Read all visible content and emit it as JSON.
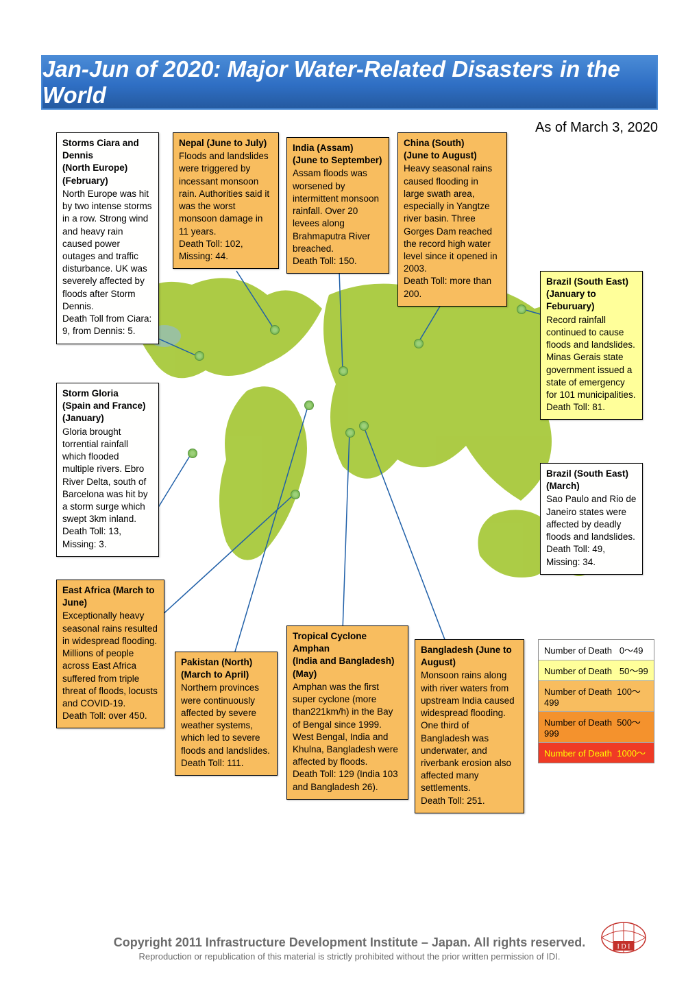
{
  "banner_title": "Jan-Jun of 2020: Major Water-Related Disasters in the World",
  "as_of": "As of March 3, 2020",
  "colors": {
    "bg_white": "#fffffe",
    "bg_pale_yellow": "#ffff9a",
    "bg_orange": "#f8bd5f",
    "bg_dark_orange": "#f4922d",
    "bg_red": "#ef3a25",
    "banner_blue": "#2f6fc4",
    "map_green": "#a8c93c"
  },
  "cards": {
    "ciara": {
      "bg": "#fffffe",
      "title": "Storms Ciara and Dennis",
      "loc": "(North Europe)",
      "dates": "(February)",
      "body": "North Europe was hit by two intense storms in a row. Strong wind and heavy rain caused power outages and traffic disturbance. UK was severely affected by floods after Storm Dennis.\nDeath Toll from Ciara: 9, from Dennis: 5."
    },
    "nepal": {
      "bg": "#f8bd5f",
      "title": "Nepal (June to July)",
      "body": "Floods and landslides were triggered by incessant monsoon rain. Authorities said it was the worst monsoon damage in 11 years.\nDeath Toll: 102, Missing: 44."
    },
    "india": {
      "bg": "#f8bd5f",
      "title": "India (Assam)",
      "dates": "(June to September)",
      "body": "Assam floods was worsened by intermittent monsoon rainfall. Over 20 levees along Brahmaputra River breached.\nDeath Toll: 150."
    },
    "china": {
      "bg": "#f8bd5f",
      "title": "China (South)",
      "dates": "(June to August)",
      "body": "Heavy seasonal rains caused flooding in large swath area, especially in Yangtze river basin. Three Gorges Dam reached the record high water level since it opened in 2003.\nDeath Toll: more than 200."
    },
    "brazil1": {
      "bg": "#ffff9a",
      "title": "Brazil (South East)",
      "dates": "(January to Feburuary)",
      "body": "Record rainfall continued to cause floods and landslides. Minas Gerais state government issued a state of emergency for 101 municipalities.\nDeath Toll: 81."
    },
    "gloria": {
      "bg": "#fffffe",
      "title": "Storm Gloria",
      "loc": "(Spain and France)",
      "dates": "(January)",
      "body": "Gloria brought torrential rainfall which flooded multiple rivers.  Ebro River Delta, south of Barcelona was hit by a storm surge which swept 3km inland.\nDeath Toll: 13, Missing: 3."
    },
    "brazil2": {
      "bg": "#fffffe",
      "title": "Brazil (South East)",
      "dates": "(March)",
      "body": "Sao Paulo and Rio de Janeiro states were affected by deadly floods and landslides.\nDeath Toll: 49,\nMissing: 34."
    },
    "eastafrica": {
      "bg": "#f8bd5f",
      "title": "East Africa (March to June)",
      "body": "Exceptionally heavy seasonal rains resulted in widespread flooding. Millions of people across East Africa suffered from triple threat of floods, locusts and COVID-19.\nDeath Toll: over 450."
    },
    "pakistan": {
      "bg": "#f8bd5f",
      "title": "Pakistan (North)",
      "dates": "(March to April)",
      "body": "Northern provinces were continuously affected by severe weather systems, which led to severe floods and landslides.\nDeath Toll: 111."
    },
    "amphan": {
      "bg": "#f8bd5f",
      "title": "Tropical Cyclone Amphan",
      "dates": "(India and Bangladesh) (May)",
      "body": "Amphan was the first super cyclone (more than221km/h) in the Bay of Bengal since 1999. West Bengal, India and Khulna, Bangladesh were affected by floods.\nDeath Toll: 129 (India 103 and Bangladesh 26)."
    },
    "bangladesh": {
      "bg": "#f8bd5f",
      "title": "Bangladesh (June to August)",
      "body": "Monsoon rains along with river waters from upstream India caused widespread flooding. One third of Bangladesh was underwater, and riverbank erosion also affected many settlements.\nDeath Toll: 251."
    }
  },
  "legend": {
    "rows": [
      {
        "label": "Number of Death",
        "range": "0～49",
        "bg": "#fffffe",
        "fg": "#000000"
      },
      {
        "label": "Number of Death",
        "range": "50～99",
        "bg": "#ffff9a",
        "fg": "#000000"
      },
      {
        "label": "Number of Death",
        "range": "100～499",
        "bg": "#f8bd5f",
        "fg": "#000000"
      },
      {
        "label": "Number of Death",
        "range": "500～999",
        "bg": "#f4922d",
        "fg": "#000000"
      },
      {
        "label": "Number of Death",
        "range": "1000～",
        "bg": "#ef3a25",
        "fg": "#ffff00"
      }
    ]
  },
  "footer": {
    "line1": "Copyright 2011 Infrastructure Development Institute – Japan.  All rights reserved.",
    "line2": "Reproduction or republication of this material is strictly prohibited without the prior written permission of IDI."
  }
}
